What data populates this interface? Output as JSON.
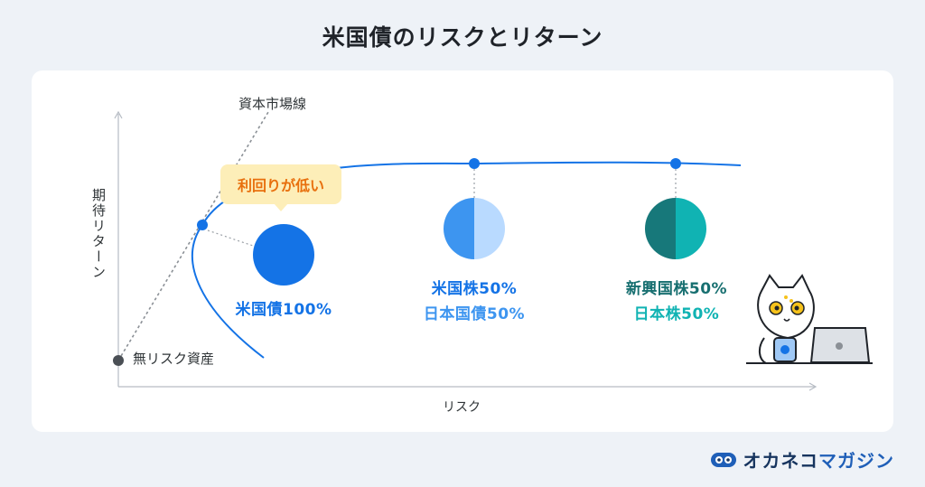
{
  "title": "米国債のリスクとリターン",
  "axes": {
    "y_label": "期待リターン",
    "x_label": "リスク"
  },
  "capital_market_line": {
    "label": "資本市場線"
  },
  "risk_free": {
    "label": "無リスク資産"
  },
  "callout": {
    "text": "利回りが低い"
  },
  "portfolios": [
    {
      "line1": "米国債100%",
      "line2": ""
    },
    {
      "line1": "米国株50%",
      "line2": "日本国債50%"
    },
    {
      "line1": "新興国株50%",
      "line2": "日本株50%"
    }
  ],
  "pie_colors": {
    "us_bond": "#1473e6",
    "us_stock": "#3d95f0",
    "jp_bond": "#b9daff",
    "em_stock": "#17787a",
    "jp_stock": "#10b3b3"
  },
  "brand": {
    "part1": "オカネコ",
    "part2": "マガジン"
  }
}
